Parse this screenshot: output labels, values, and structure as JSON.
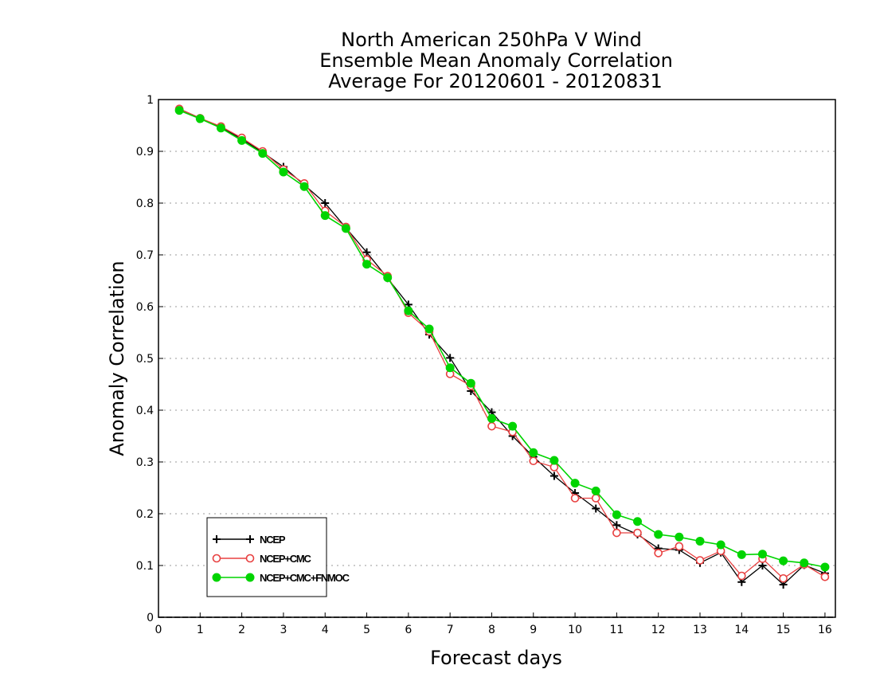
{
  "chart_data": {
    "type": "line",
    "title": [
      "North American 250hPa V Wind",
      "Ensemble Mean Anomaly Correlation",
      "Average For 20120601 - 20120831"
    ],
    "xlabel": "Forecast days",
    "ylabel": "Anomaly Correlation",
    "xlim": [
      0,
      16.25
    ],
    "ylim": [
      0,
      1
    ],
    "xticks": [
      0,
      1,
      2,
      3,
      4,
      5,
      6,
      7,
      8,
      9,
      10,
      11,
      12,
      13,
      14,
      15,
      16
    ],
    "yticks": [
      0,
      0.1,
      0.2,
      0.3,
      0.4,
      0.5,
      0.6,
      0.7,
      0.8,
      0.9,
      1
    ],
    "grid": "horizontal dotted",
    "legend_position": "bottom-left",
    "x": [
      0.5,
      1,
      1.5,
      2,
      2.5,
      3,
      3.5,
      4,
      4.5,
      5,
      5.5,
      6,
      6.5,
      7,
      7.5,
      8,
      8.5,
      9,
      9.5,
      10,
      10.5,
      11,
      11.5,
      12,
      12.5,
      13,
      13.5,
      14,
      14.5,
      15,
      15.5,
      16
    ],
    "series": [
      {
        "name": "NCEP",
        "color": "#000000",
        "marker": "plus",
        "values": [
          0.982,
          0.964,
          0.946,
          0.924,
          0.898,
          0.87,
          0.835,
          0.8,
          0.752,
          0.705,
          0.655,
          0.604,
          0.546,
          0.501,
          0.437,
          0.396,
          0.35,
          0.31,
          0.273,
          0.24,
          0.21,
          0.178,
          0.16,
          0.133,
          0.13,
          0.105,
          0.125,
          0.068,
          0.1,
          0.063,
          0.101,
          0.085
        ]
      },
      {
        "name": "NCEP+CMC",
        "color": "#e84040",
        "marker": "open-circle",
        "values": [
          0.982,
          0.964,
          0.948,
          0.926,
          0.9,
          0.865,
          0.838,
          0.785,
          0.754,
          0.691,
          0.659,
          0.588,
          0.552,
          0.47,
          0.447,
          0.369,
          0.358,
          0.302,
          0.29,
          0.23,
          0.23,
          0.163,
          0.163,
          0.124,
          0.137,
          0.11,
          0.128,
          0.08,
          0.113,
          0.075,
          0.102,
          0.078
        ]
      },
      {
        "name": "NCEP+CMC+FNMOC",
        "color": "#00d400",
        "marker": "filled-circle",
        "values": [
          0.979,
          0.963,
          0.945,
          0.921,
          0.896,
          0.86,
          0.832,
          0.776,
          0.751,
          0.682,
          0.656,
          0.592,
          0.557,
          0.482,
          0.452,
          0.384,
          0.369,
          0.318,
          0.303,
          0.259,
          0.244,
          0.198,
          0.185,
          0.16,
          0.155,
          0.147,
          0.14,
          0.121,
          0.122,
          0.109,
          0.105,
          0.097
        ]
      }
    ]
  }
}
